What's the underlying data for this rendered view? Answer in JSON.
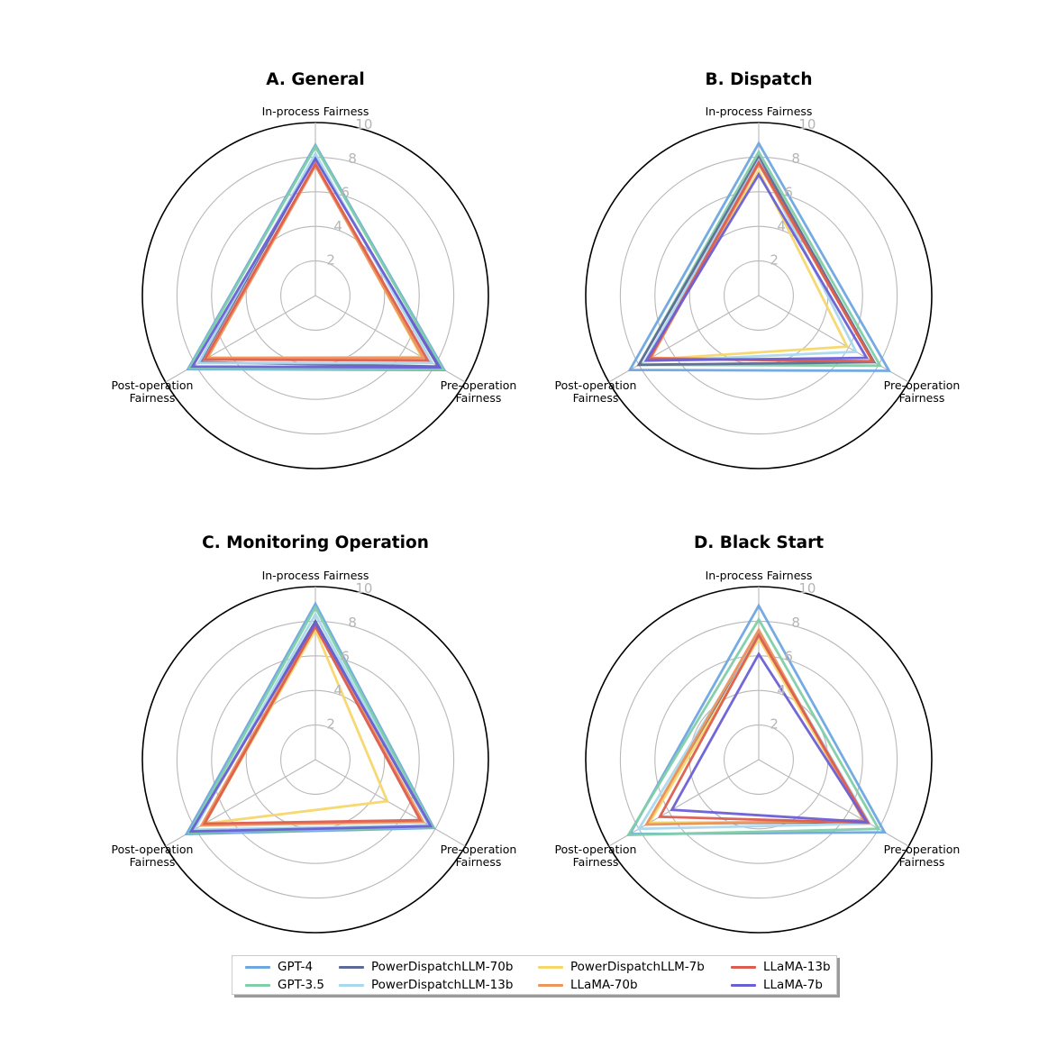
{
  "chart_data": [
    {
      "type": "radar",
      "title": "A. General",
      "axes": [
        "In-process Fairness",
        "Pre-operation Fairness",
        "Post-operation Fairness"
      ],
      "axis_labels": [
        [
          "In-process Fairness"
        ],
        [
          "Pre-operation",
          "Fairness"
        ],
        [
          "Post-operation",
          "Fairness"
        ]
      ],
      "rlim": [
        0,
        10
      ],
      "rticks": [
        2,
        4,
        6,
        8,
        10
      ],
      "series": [
        {
          "name": "GPT-4",
          "values": [
            8.7,
            8.6,
            8.5
          ]
        },
        {
          "name": "GPT-3.5",
          "values": [
            8.6,
            8.5,
            8.4
          ]
        },
        {
          "name": "PowerDispatchLLM-70b",
          "values": [
            8.0,
            8.2,
            7.7
          ]
        },
        {
          "name": "PowerDispatchLLM-13b",
          "values": [
            8.2,
            7.8,
            7.8
          ]
        },
        {
          "name": "PowerDispatchLLM-7b",
          "values": [
            7.6,
            7.1,
            7.2
          ]
        },
        {
          "name": "LLaMA-70b",
          "values": [
            7.5,
            7.2,
            7.2
          ]
        },
        {
          "name": "LLaMA-13b",
          "values": [
            7.6,
            7.5,
            7.4
          ]
        },
        {
          "name": "LLaMA-7b",
          "values": [
            7.9,
            8.3,
            8.2
          ]
        }
      ]
    },
    {
      "type": "radar",
      "title": "B. Dispatch",
      "axes": [
        "In-process Fairness",
        "Pre-operation Fairness",
        "Post-operation Fairness"
      ],
      "axis_labels": [
        [
          "In-process Fairness"
        ],
        [
          "Pre-operation",
          "Fairness"
        ],
        [
          "Post-operation",
          "Fairness"
        ]
      ],
      "rlim": [
        0,
        10
      ],
      "rticks": [
        2,
        4,
        6,
        8,
        10
      ],
      "series": [
        {
          "name": "GPT-4",
          "values": [
            8.8,
            8.7,
            8.6
          ]
        },
        {
          "name": "GPT-3.5",
          "values": [
            8.3,
            8.1,
            8.0
          ]
        },
        {
          "name": "PowerDispatchLLM-70b",
          "values": [
            8.0,
            7.7,
            8.0
          ]
        },
        {
          "name": "PowerDispatchLLM-13b",
          "values": [
            7.8,
            6.5,
            7.6
          ]
        },
        {
          "name": "PowerDispatchLLM-7b",
          "values": [
            7.2,
            5.9,
            7.4
          ]
        },
        {
          "name": "LLaMA-70b",
          "values": [
            7.6,
            7.6,
            7.2
          ]
        },
        {
          "name": "LLaMA-13b",
          "values": [
            7.7,
            7.6,
            7.3
          ]
        },
        {
          "name": "LLaMA-7b",
          "values": [
            7.0,
            7.2,
            7.5
          ]
        }
      ]
    },
    {
      "type": "radar",
      "title": "C. Monitoring Operation",
      "axes": [
        "In-process Fairness",
        "Pre-operation Fairness",
        "Post-operation Fairness"
      ],
      "axis_labels": [
        [
          "In-process Fairness"
        ],
        [
          "Pre-operation",
          "Fairness"
        ],
        [
          "Post-operation",
          "Fairness"
        ]
      ],
      "rlim": [
        0,
        10
      ],
      "rticks": [
        2,
        4,
        6,
        8,
        10
      ],
      "series": [
        {
          "name": "GPT-4",
          "values": [
            9.0,
            7.9,
            8.6
          ]
        },
        {
          "name": "GPT-3.5",
          "values": [
            8.8,
            7.8,
            8.4
          ]
        },
        {
          "name": "PowerDispatchLLM-70b",
          "values": [
            8.0,
            7.6,
            8.2
          ]
        },
        {
          "name": "PowerDispatchLLM-13b",
          "values": [
            8.4,
            7.6,
            8.1
          ]
        },
        {
          "name": "PowerDispatchLLM-7b",
          "values": [
            7.5,
            4.8,
            7.4
          ]
        },
        {
          "name": "LLaMA-70b",
          "values": [
            7.8,
            7.2,
            7.6
          ]
        },
        {
          "name": "LLaMA-13b",
          "values": [
            7.7,
            7.0,
            7.4
          ]
        },
        {
          "name": "LLaMA-7b",
          "values": [
            7.9,
            7.7,
            8.3
          ]
        }
      ]
    },
    {
      "type": "radar",
      "title": "D. Black Start",
      "axes": [
        "In-process Fairness",
        "Pre-operation Fairness",
        "Post-operation Fairness"
      ],
      "axis_labels": [
        [
          "In-process Fairness"
        ],
        [
          "Pre-operation",
          "Fairness"
        ],
        [
          "Post-operation",
          "Fairness"
        ]
      ],
      "rlim": [
        0,
        10
      ],
      "rticks": [
        2,
        4,
        6,
        8,
        10
      ],
      "series": [
        {
          "name": "GPT-4",
          "values": [
            8.9,
            8.4,
            8.6
          ]
        },
        {
          "name": "GPT-3.5",
          "values": [
            8.1,
            8.0,
            8.7
          ]
        },
        {
          "name": "PowerDispatchLLM-70b",
          "values": [
            7.4,
            7.2,
            7.4
          ]
        },
        {
          "name": "PowerDispatchLLM-13b",
          "values": [
            7.3,
            7.4,
            8.0
          ]
        },
        {
          "name": "PowerDispatchLLM-7b",
          "values": [
            7.0,
            7.1,
            7.3
          ]
        },
        {
          "name": "LLaMA-70b",
          "values": [
            7.5,
            7.0,
            7.5
          ]
        },
        {
          "name": "LLaMA-13b",
          "values": [
            7.2,
            7.3,
            6.6
          ]
        },
        {
          "name": "LLaMA-7b",
          "values": [
            6.1,
            7.2,
            5.8
          ]
        }
      ]
    }
  ],
  "legend": [
    {
      "name": "GPT-4",
      "color": "#6ea6e0"
    },
    {
      "name": "GPT-3.5",
      "color": "#7fcfa8"
    },
    {
      "name": "PowerDispatchLLM-70b",
      "color": "#5e6a96"
    },
    {
      "name": "PowerDispatchLLM-13b",
      "color": "#a9d8ee"
    },
    {
      "name": "PowerDispatchLLM-7b",
      "color": "#f5d76a"
    },
    {
      "name": "LLaMA-70b",
      "color": "#ee955c"
    },
    {
      "name": "LLaMA-13b",
      "color": "#dc5d4f"
    },
    {
      "name": "LLaMA-7b",
      "color": "#6b5fd6"
    }
  ],
  "legend_location": "bottom-center"
}
